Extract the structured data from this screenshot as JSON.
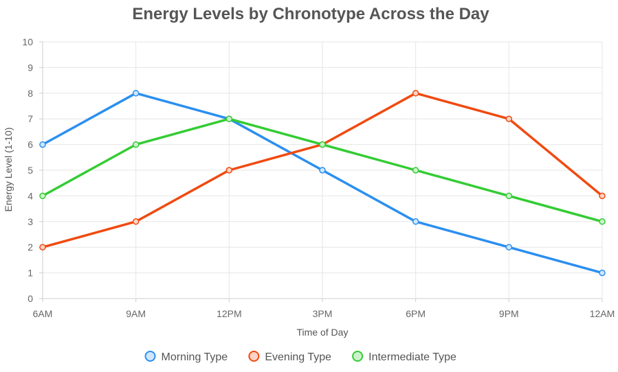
{
  "chart_data": {
    "type": "line",
    "title": "Energy Levels by Chronotype Across the Day",
    "xlabel": "Time of Day",
    "ylabel": "Energy Level (1-10)",
    "categories": [
      "6AM",
      "9AM",
      "12PM",
      "3PM",
      "6PM",
      "9PM",
      "12AM"
    ],
    "ylim": [
      0,
      10
    ],
    "yticks": [
      "0",
      "1",
      "2",
      "3",
      "4",
      "5",
      "6",
      "7",
      "8",
      "9",
      "10"
    ],
    "grid": true,
    "legend_position": "bottom",
    "series": [
      {
        "name": "Morning Type",
        "values": [
          6,
          8,
          7,
          5,
          3,
          2,
          1
        ],
        "color": "#2b8ff0",
        "fill": "#cfe6fc"
      },
      {
        "name": "Evening Type",
        "values": [
          2,
          3,
          5,
          6,
          8,
          7,
          4
        ],
        "color": "#f04a10",
        "fill": "#fcd3c4"
      },
      {
        "name": "Intermediate Type",
        "values": [
          4,
          6,
          7,
          6,
          5,
          4,
          3
        ],
        "color": "#33cc33",
        "fill": "#ccf2cc"
      }
    ]
  }
}
